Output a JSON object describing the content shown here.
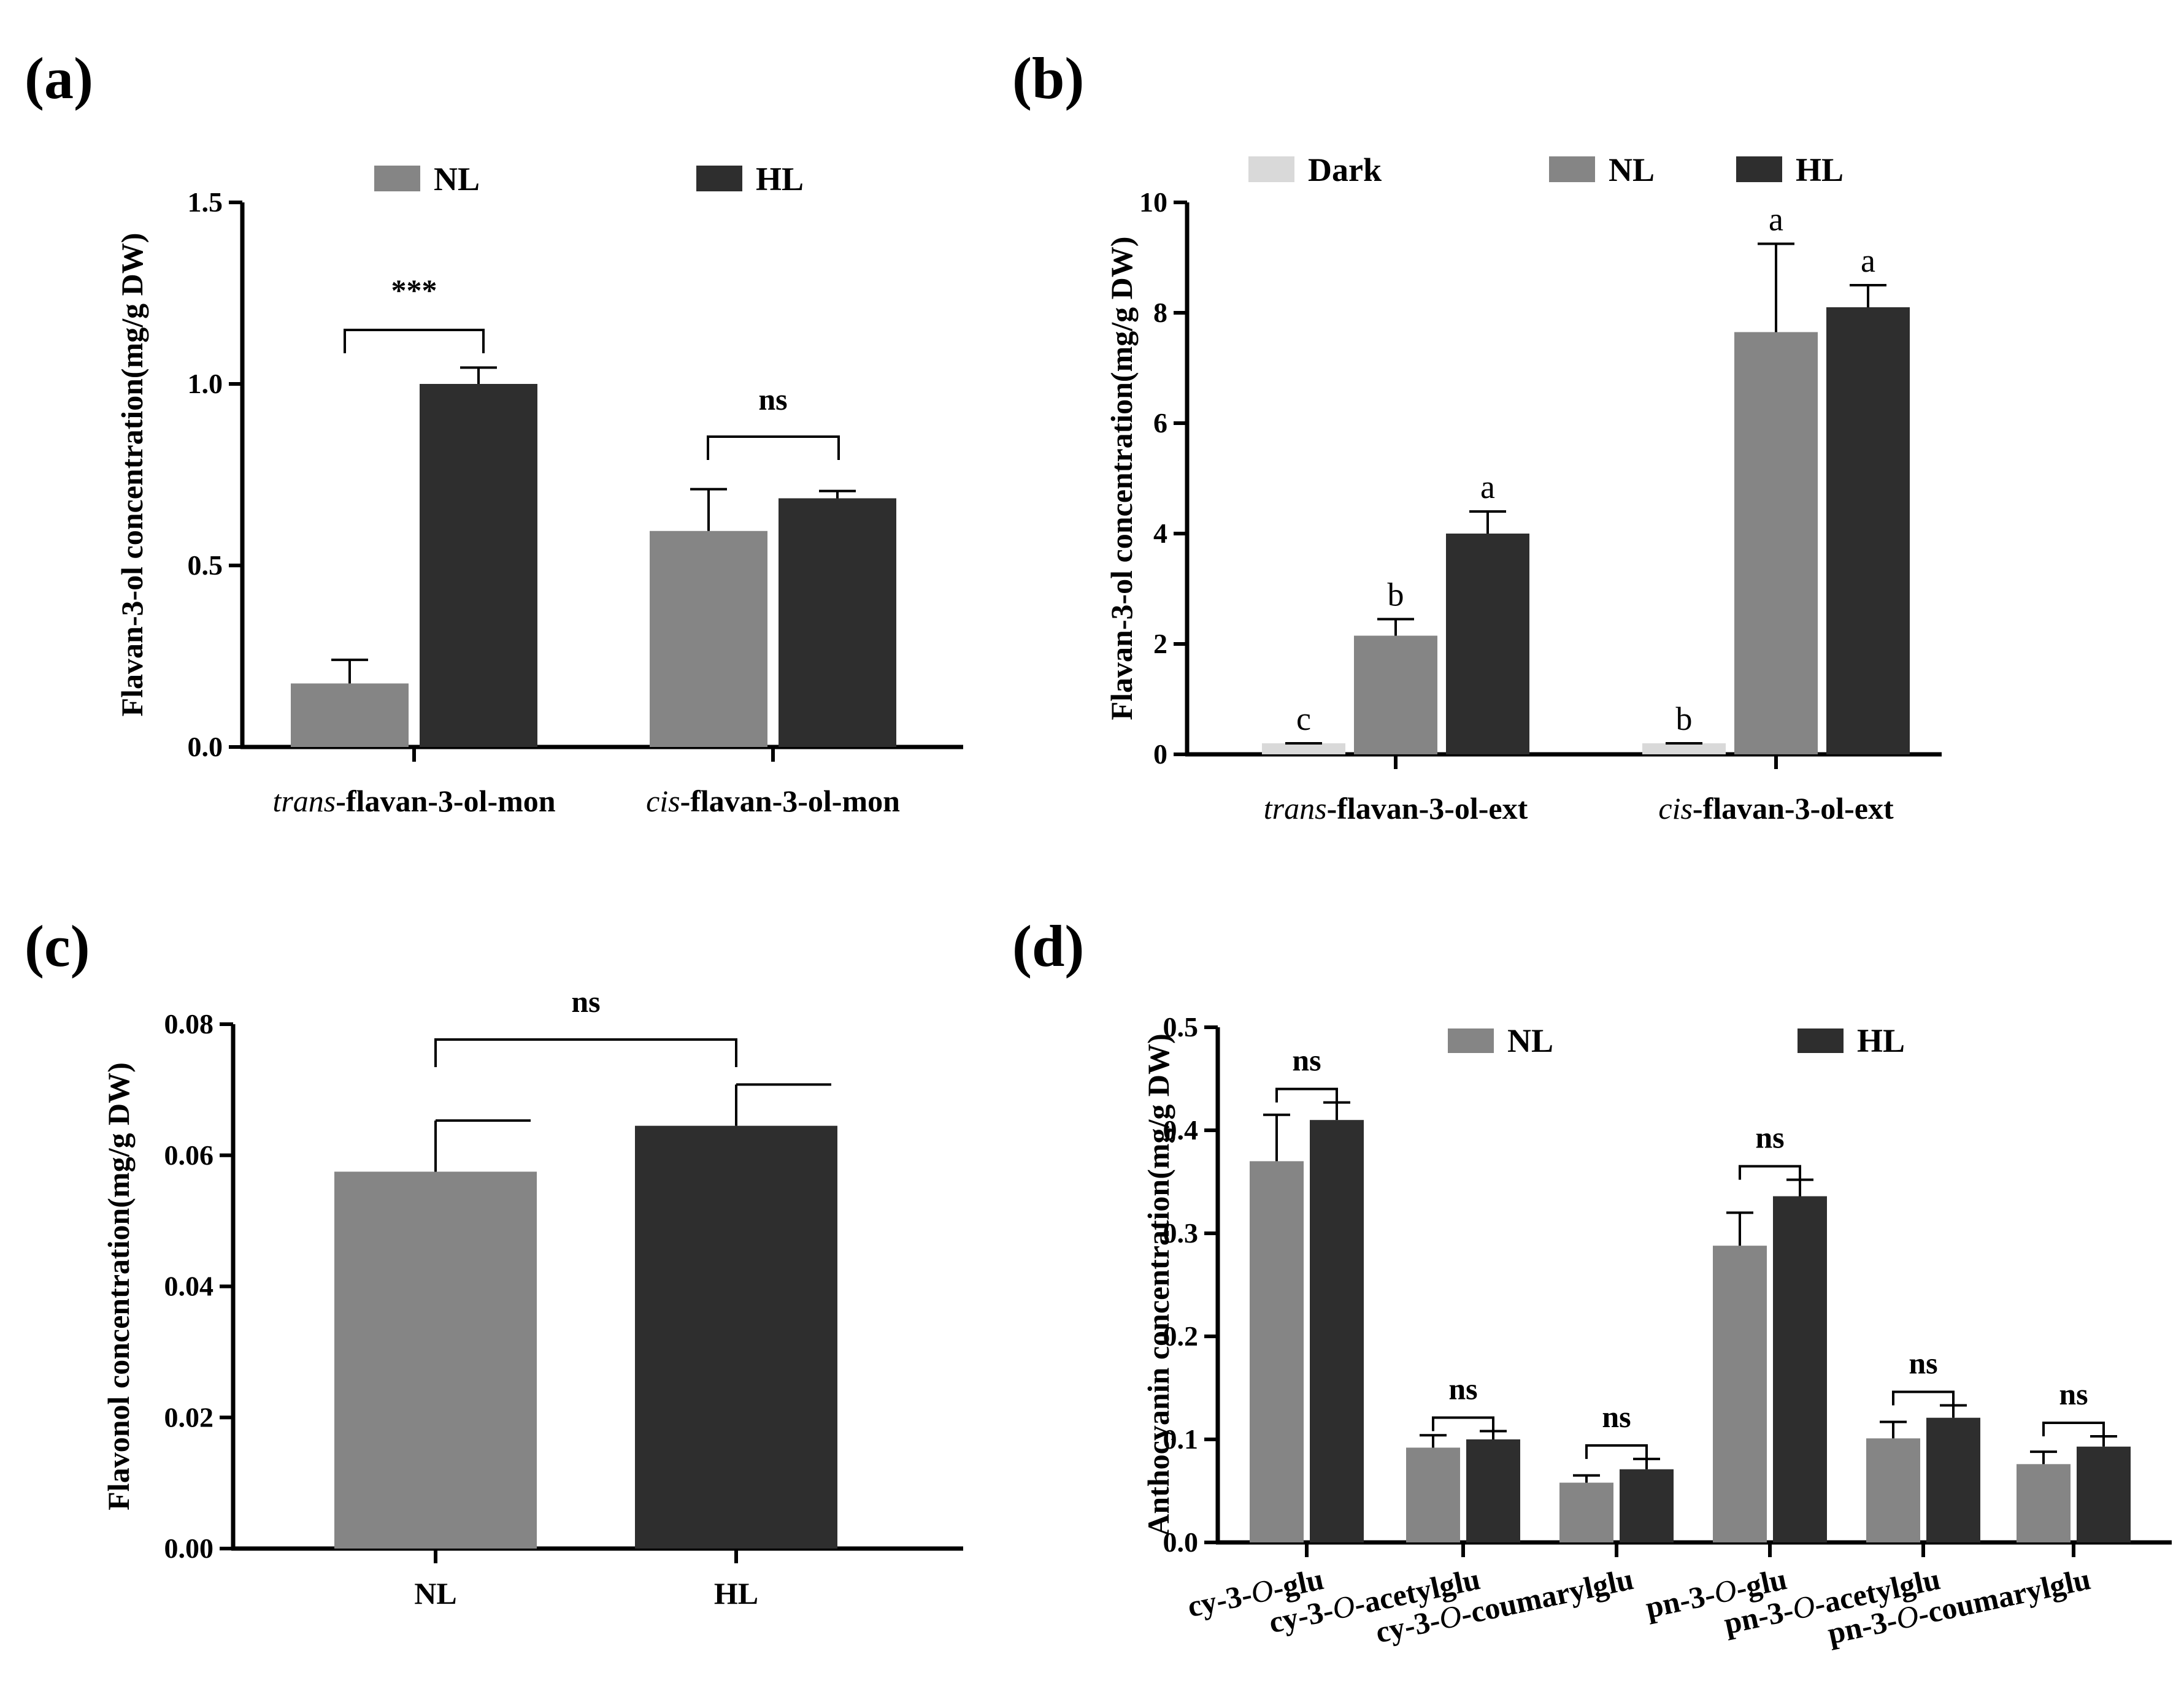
{
  "colors": {
    "Dark": "#d9d9d9",
    "NL": "#858585",
    "HL": "#2e2e2e",
    "axis": "#000000"
  },
  "chart_data": [
    {
      "panel": "(a)",
      "type": "bar",
      "ylabel": "Flavan-3-ol concentration(mg/g DW)",
      "ylim": [
        0,
        1.5
      ],
      "yticks": [
        "0.0",
        "0.5",
        "1.0",
        "1.5"
      ],
      "categories": [
        {
          "italic": "trans",
          "rest": "-flavan-3-ol-mon"
        },
        {
          "italic": "cis",
          "rest": "-flavan-3-ol-mon"
        }
      ],
      "series": [
        {
          "name": "NL",
          "values": [
            0.175,
            0.595
          ],
          "errors": [
            0.065,
            0.115
          ]
        },
        {
          "name": "HL",
          "values": [
            1.0,
            0.685
          ],
          "errors": [
            0.045,
            0.02
          ]
        }
      ],
      "significance": [
        "***",
        "ns"
      ],
      "letters": null,
      "legend_position": "top"
    },
    {
      "panel": "(b)",
      "type": "bar",
      "ylabel": "Flavan-3-ol concentration(mg/g DW)",
      "ylim": [
        0,
        10
      ],
      "yticks": [
        "0",
        "2",
        "4",
        "6",
        "8",
        "10"
      ],
      "categories": [
        {
          "italic": "trans",
          "rest": "-flavan-3-ol-ext"
        },
        {
          "italic": "cis",
          "rest": "-flavan-3-ol-ext"
        }
      ],
      "series": [
        {
          "name": "Dark",
          "values": [
            0.2,
            0.2
          ],
          "errors": [
            0.0,
            0.0
          ]
        },
        {
          "name": "NL",
          "values": [
            2.15,
            7.65
          ],
          "errors": [
            0.3,
            1.6
          ]
        },
        {
          "name": "HL",
          "values": [
            4.0,
            8.1
          ],
          "errors": [
            0.4,
            0.4
          ]
        }
      ],
      "significance": null,
      "letters": [
        [
          "c",
          "b",
          "a"
        ],
        [
          "b",
          "a",
          "a"
        ]
      ],
      "legend_position": "top"
    },
    {
      "panel": "(c)",
      "type": "bar",
      "ylabel": "Flavonol concentration(mg/g DW)",
      "ylim": [
        0,
        0.08
      ],
      "yticks": [
        "0.00",
        "0.02",
        "0.04",
        "0.06",
        "0.08"
      ],
      "categories": [
        {
          "italic": "",
          "rest": "NL"
        },
        {
          "italic": "",
          "rest": "HL"
        }
      ],
      "series": [
        {
          "name": "Flavonol",
          "values": [
            0.0575,
            0.0645
          ],
          "errors": [
            0.0078,
            0.0063
          ],
          "colors": [
            "NL",
            "HL"
          ]
        }
      ],
      "significance": [
        "ns"
      ],
      "letters": null,
      "legend_position": "none"
    },
    {
      "panel": "(d)",
      "type": "bar",
      "ylabel": "Anthocyanin concentration(mg/g DW)",
      "ylim": [
        0,
        0.5
      ],
      "yticks": [
        "0.0",
        "0.1",
        "0.2",
        "0.3",
        "0.4",
        "0.5"
      ],
      "categories": [
        {
          "pre": "cy-3-",
          "italic": "O",
          "rest": "-glu"
        },
        {
          "pre": "cy-3-",
          "italic": "O",
          "rest": "-acetylglu"
        },
        {
          "pre": "cy-3-",
          "italic": "O",
          "rest": "-coumarylglu"
        },
        {
          "pre": "pn-3-",
          "italic": "O",
          "rest": "-glu"
        },
        {
          "pre": "pn-3-",
          "italic": "O",
          "rest": "-acetylglu"
        },
        {
          "pre": "pn-3-",
          "italic": "O",
          "rest": "-coumarylglu"
        }
      ],
      "series": [
        {
          "name": "NL",
          "values": [
            0.37,
            0.092,
            0.058,
            0.288,
            0.101,
            0.076
          ],
          "errors": [
            0.045,
            0.012,
            0.007,
            0.032,
            0.016,
            0.012
          ]
        },
        {
          "name": "HL",
          "values": [
            0.41,
            0.1,
            0.071,
            0.336,
            0.121,
            0.093
          ],
          "errors": [
            0.017,
            0.008,
            0.01,
            0.016,
            0.012,
            0.01
          ]
        }
      ],
      "significance": [
        "ns",
        "ns",
        "ns",
        "ns",
        "ns",
        "ns"
      ],
      "letters": null,
      "legend_position": "top"
    }
  ]
}
